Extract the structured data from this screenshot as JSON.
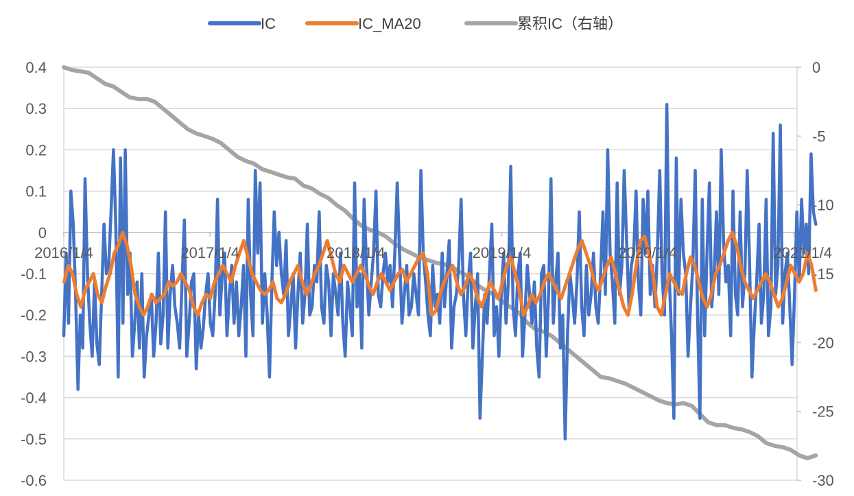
{
  "chart_data": {
    "type": "line",
    "title": "",
    "xlabel": "",
    "ylabel": "",
    "legend_position": "top",
    "grid": true,
    "x_tick_labels": [
      "2016/1/4",
      "2017/1/4",
      "2018/1/4",
      "2019/1/4",
      "2020/1/4",
      "2021/1/4"
    ],
    "x_range": [
      "2016/1/4",
      "2021/2/28"
    ],
    "y_left": {
      "ylim": [
        -0.6,
        0.4
      ],
      "ticks": [
        "0.4",
        "0.3",
        "0.2",
        "0.1",
        "0",
        "-0.1",
        "-0.2",
        "-0.3",
        "-0.4",
        "-0.5",
        "-0.6"
      ]
    },
    "y_right": {
      "ylim": [
        -30,
        0
      ],
      "ticks": [
        "0",
        "-5",
        "-10",
        "-15",
        "-20",
        "-25",
        "-30"
      ]
    },
    "colors": {
      "IC": "#4472C4",
      "IC_MA20": "#ED7D31",
      "cum": "#A5A5A5",
      "grid": "#D9D9D9"
    },
    "series": [
      {
        "name": "IC",
        "axis": "left",
        "x_start": "2016/1/4",
        "x_end": "2021/2/28",
        "values": [
          -0.25,
          -0.05,
          -0.22,
          0.1,
          0.02,
          -0.15,
          -0.38,
          -0.2,
          -0.28,
          0.13,
          -0.1,
          -0.22,
          -0.3,
          -0.12,
          -0.27,
          -0.32,
          -0.15,
          0.02,
          -0.1,
          -0.08,
          0.05,
          0.2,
          0.02,
          -0.35,
          0.18,
          -0.22,
          0.2,
          -0.15,
          -0.05,
          -0.3,
          -0.22,
          -0.12,
          -0.28,
          -0.1,
          -0.35,
          -0.25,
          -0.2,
          -0.15,
          -0.3,
          -0.22,
          -0.05,
          -0.27,
          -0.2,
          0.05,
          -0.28,
          -0.15,
          -0.08,
          -0.18,
          -0.22,
          -0.28,
          -0.12,
          0.03,
          -0.3,
          -0.22,
          -0.12,
          -0.1,
          -0.33,
          -0.2,
          -0.28,
          -0.23,
          -0.15,
          -0.1,
          -0.22,
          -0.25,
          -0.15,
          0.08,
          -0.2,
          -0.1,
          -0.05,
          -0.25,
          -0.15,
          -0.08,
          -0.22,
          -0.12,
          -0.25,
          -0.18,
          -0.08,
          -0.3,
          0.08,
          -0.15,
          -0.25,
          0.15,
          -0.05,
          0.12,
          -0.22,
          -0.1,
          -0.2,
          -0.35,
          -0.12,
          0.05,
          -0.08,
          0.0,
          -0.1,
          -0.15,
          -0.02,
          -0.25,
          -0.18,
          -0.1,
          -0.28,
          -0.15,
          -0.05,
          -0.22,
          -0.15,
          0.02,
          -0.2,
          -0.18,
          -0.08,
          -0.12,
          0.05,
          -0.18,
          -0.22,
          -0.08,
          -0.12,
          -0.25,
          -0.1,
          -0.15,
          -0.2,
          -0.05,
          -0.22,
          -0.3,
          -0.12,
          -0.18,
          -0.25,
          0.12,
          -0.18,
          -0.1,
          -0.28,
          0.08,
          -0.08,
          -0.2,
          -0.12,
          -0.05,
          0.1,
          -0.15,
          -0.18,
          -0.1,
          -0.05,
          -0.12,
          -0.08,
          -0.18,
          -0.05,
          0.12,
          -0.05,
          -0.22,
          -0.15,
          -0.08,
          -0.2,
          -0.18,
          -0.1,
          -0.15,
          -0.2,
          0.15,
          -0.05,
          -0.12,
          -0.2,
          -0.25,
          -0.08,
          -0.18,
          -0.15,
          -0.22,
          -0.05,
          -0.18,
          -0.1,
          -0.02,
          -0.28,
          -0.18,
          -0.15,
          -0.08,
          0.08,
          -0.15,
          -0.25,
          -0.12,
          -0.05,
          -0.28,
          -0.18,
          -0.1,
          -0.45,
          -0.3,
          -0.15,
          -0.22,
          -0.1,
          0.02,
          -0.25,
          -0.18,
          -0.3,
          -0.15,
          -0.05,
          -0.22,
          -0.12,
          0.16,
          -0.18,
          -0.25,
          -0.1,
          -0.05,
          -0.3,
          -0.2,
          -0.08,
          -0.15,
          -0.22,
          -0.12,
          -0.28,
          -0.35,
          -0.1,
          -0.08,
          -0.3,
          -0.15,
          0.13,
          -0.22,
          -0.12,
          -0.05,
          -0.28,
          -0.2,
          -0.5,
          -0.25,
          -0.1,
          -0.15,
          -0.22,
          -0.12,
          0.05,
          -0.18,
          -0.25,
          -0.08,
          -0.2,
          -0.15,
          -0.05,
          -0.18,
          -0.22,
          -0.1,
          0.05,
          -0.15,
          0.2,
          -0.05,
          -0.12,
          -0.22,
          0.12,
          -0.15,
          -0.08,
          0.15,
          -0.02,
          -0.18,
          -0.08,
          -0.05,
          0.1,
          -0.12,
          -0.2,
          0.08,
          -0.05,
          0.1,
          -0.15,
          -0.08,
          -0.18,
          -0.05,
          0.15,
          -0.1,
          -0.2,
          0.31,
          -0.1,
          -0.25,
          -0.45,
          0.18,
          -0.15,
          0.08,
          -0.05,
          -0.1,
          -0.3,
          -0.18,
          -0.08,
          0.15,
          -0.2,
          -0.45,
          0.08,
          -0.25,
          -0.05,
          0.12,
          -0.18,
          -0.1,
          0.05,
          -0.15,
          0.2,
          -0.02,
          -0.12,
          -0.08,
          -0.25,
          0.1,
          -0.15,
          -0.2,
          0.05,
          -0.18,
          -0.1,
          0.15,
          -0.08,
          -0.35,
          -0.22,
          -0.12,
          0.02,
          -0.22,
          -0.15,
          0.08,
          -0.25,
          -0.18,
          0.24,
          -0.15,
          -0.08,
          0.26,
          -0.22,
          -0.1,
          -0.05,
          -0.18,
          -0.32,
          -0.15,
          0.05,
          -0.12,
          0.08,
          -0.05,
          0.02,
          -0.1,
          0.19,
          0.05,
          0.02
        ]
      },
      {
        "name": "IC_MA20",
        "axis": "left",
        "x_start": "2016/1/5",
        "x_end": "2021/2/28",
        "values": [
          -0.12,
          -0.08,
          -0.1,
          -0.15,
          -0.18,
          -0.14,
          -0.12,
          -0.1,
          -0.15,
          -0.17,
          -0.13,
          -0.1,
          -0.05,
          -0.03,
          0.0,
          -0.03,
          -0.08,
          -0.15,
          -0.18,
          -0.2,
          -0.18,
          -0.15,
          -0.17,
          -0.16,
          -0.15,
          -0.12,
          -0.13,
          -0.12,
          -0.1,
          -0.12,
          -0.14,
          -0.18,
          -0.2,
          -0.17,
          -0.15,
          -0.16,
          -0.12,
          -0.1,
          -0.08,
          -0.1,
          -0.12,
          -0.08,
          -0.05,
          -0.02,
          -0.06,
          -0.1,
          -0.12,
          -0.14,
          -0.15,
          -0.14,
          -0.12,
          -0.16,
          -0.17,
          -0.15,
          -0.12,
          -0.1,
          -0.08,
          -0.12,
          -0.15,
          -0.13,
          -0.1,
          -0.08,
          -0.05,
          -0.02,
          -0.06,
          -0.1,
          -0.12,
          -0.08,
          -0.1,
          -0.12,
          -0.1,
          -0.08,
          -0.1,
          -0.13,
          -0.15,
          -0.12,
          -0.1,
          -0.12,
          -0.14,
          -0.12,
          -0.1,
          -0.09,
          -0.12,
          -0.1,
          -0.08,
          -0.06,
          -0.05,
          -0.1,
          -0.2,
          -0.19,
          -0.15,
          -0.12,
          -0.1,
          -0.08,
          -0.12,
          -0.15,
          -0.13,
          -0.1,
          -0.12,
          -0.16,
          -0.18,
          -0.15,
          -0.12,
          -0.14,
          -0.16,
          -0.12,
          -0.08,
          -0.06,
          -0.1,
          -0.14,
          -0.2,
          -0.18,
          -0.15,
          -0.17,
          -0.15,
          -0.12,
          -0.1,
          -0.12,
          -0.14,
          -0.16,
          -0.13,
          -0.1,
          -0.07,
          -0.04,
          -0.02,
          -0.05,
          -0.08,
          -0.12,
          -0.14,
          -0.11,
          -0.08,
          -0.06,
          -0.1,
          -0.14,
          -0.18,
          -0.2,
          -0.15,
          -0.08,
          -0.02,
          -0.01,
          -0.05,
          -0.1,
          -0.18,
          -0.2,
          -0.15,
          -0.1,
          -0.12,
          -0.14,
          -0.15,
          -0.1,
          -0.06,
          -0.08,
          -0.12,
          -0.16,
          -0.18,
          -0.15,
          -0.1,
          -0.08,
          -0.05,
          -0.02,
          0.0,
          -0.03,
          -0.08,
          -0.12,
          -0.14,
          -0.16,
          -0.14,
          -0.12,
          -0.1,
          -0.12,
          -0.15,
          -0.18,
          -0.16,
          -0.12,
          -0.08,
          -0.1,
          -0.12,
          -0.1,
          -0.05,
          -0.08,
          -0.14
        ]
      },
      {
        "name": "累积IC（右轴）",
        "axis": "right",
        "x_start": "2016/1/4",
        "x_end": "2021/2/28",
        "values": [
          0.0,
          -0.2,
          -0.3,
          -0.4,
          -0.8,
          -1.2,
          -1.4,
          -1.8,
          -2.2,
          -2.3,
          -2.3,
          -2.5,
          -3.0,
          -3.5,
          -4.0,
          -4.5,
          -4.8,
          -5.0,
          -5.2,
          -5.5,
          -6.0,
          -6.5,
          -6.8,
          -7.0,
          -7.4,
          -7.6,
          -7.8,
          -8.0,
          -8.1,
          -8.6,
          -8.8,
          -9.2,
          -9.5,
          -10.0,
          -10.4,
          -11.0,
          -11.5,
          -11.8,
          -12.0,
          -12.3,
          -12.8,
          -13.2,
          -13.5,
          -13.8,
          -14.0,
          -14.2,
          -14.3,
          -14.5,
          -14.9,
          -15.2,
          -15.8,
          -16.2,
          -16.5,
          -17.0,
          -17.4,
          -17.8,
          -18.5,
          -19.0,
          -19.2,
          -19.5,
          -20.0,
          -20.5,
          -21.0,
          -21.5,
          -22.0,
          -22.5,
          -22.6,
          -22.8,
          -23.0,
          -23.3,
          -23.6,
          -23.9,
          -24.2,
          -24.4,
          -24.5,
          -24.4,
          -24.6,
          -25.2,
          -25.8,
          -26.0,
          -26.0,
          -26.2,
          -26.3,
          -26.5,
          -26.8,
          -27.3,
          -27.5,
          -27.6,
          -27.8,
          -28.2,
          -28.4,
          -28.2
        ]
      }
    ]
  }
}
